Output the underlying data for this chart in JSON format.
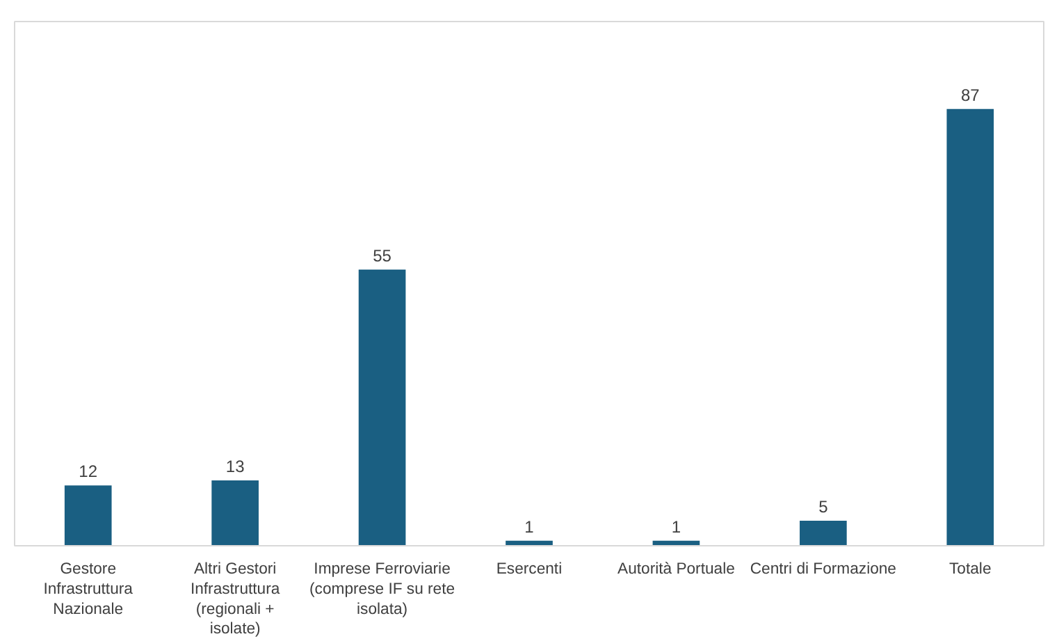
{
  "chart_data": {
    "type": "bar",
    "categories": [
      "Gestore Infrastruttura Nazionale",
      "Altri Gestori Infrastruttura (regionali + isolate)",
      "Imprese Ferroviarie (comprese IF su rete isolata)",
      "Esercenti",
      "Autorità Portuale",
      "Centri di Formazione",
      "Totale"
    ],
    "values": [
      12,
      13,
      55,
      1,
      1,
      5,
      87
    ],
    "color": "#1a5f82",
    "data_labels": true
  }
}
